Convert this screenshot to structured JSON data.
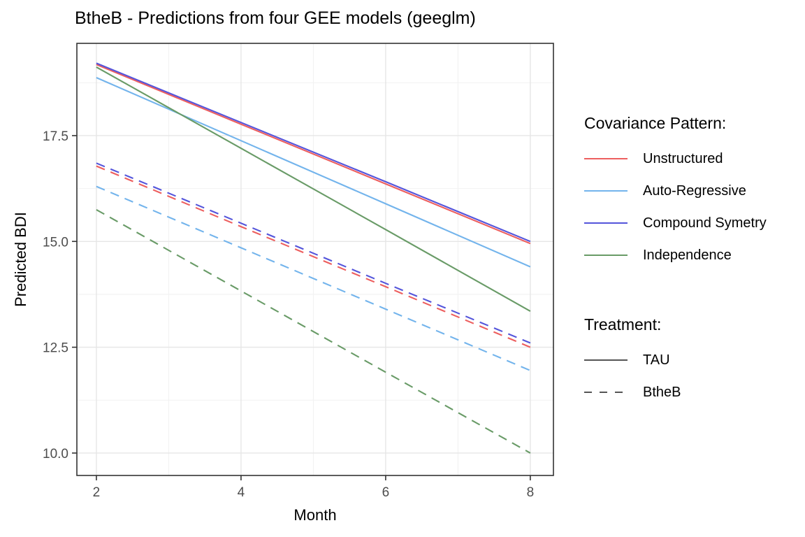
{
  "chart_data": {
    "type": "line",
    "title": "BtheB - Predictions from four GEE models (geeglm)",
    "xlabel": "Month",
    "ylabel": "Predicted BDI",
    "x": [
      2,
      4,
      6,
      8
    ],
    "xlim": [
      1.73,
      8.32
    ],
    "ylim": [
      9.47,
      19.68
    ],
    "x_ticks": {
      "values": [
        2,
        4,
        6,
        8
      ],
      "labels": [
        "2",
        "4",
        "6",
        "8"
      ]
    },
    "x_minor": [
      3,
      5,
      7
    ],
    "y_ticks": {
      "values": [
        10,
        12.5,
        15,
        17.5
      ],
      "labels": [
        "10.0",
        "12.5",
        "15.0",
        "17.5"
      ]
    },
    "y_minor": [
      11.25,
      13.75,
      16.25,
      18.75
    ],
    "grid": "major+minor",
    "legend_position": "right",
    "series": [
      {
        "treatment": "TAU",
        "covariance": "Unstructured",
        "color": "#ED5F5F",
        "linetype": "solid",
        "values": [
          19.18,
          17.77,
          16.36,
          14.95
        ]
      },
      {
        "treatment": "TAU",
        "covariance": "Auto-Regressive",
        "color": "#73B4EC",
        "linetype": "solid",
        "values": [
          18.87,
          17.38,
          15.89,
          14.4
        ]
      },
      {
        "treatment": "TAU",
        "covariance": "Compound Symetry",
        "color": "#5455DB",
        "linetype": "solid",
        "values": [
          19.21,
          17.81,
          16.41,
          15.0
        ]
      },
      {
        "treatment": "TAU",
        "covariance": "Independence",
        "color": "#699B67",
        "linetype": "solid",
        "values": [
          19.12,
          17.2,
          15.28,
          13.35
        ]
      },
      {
        "treatment": "BtheB",
        "covariance": "Unstructured",
        "color": "#ED5F5F",
        "linetype": "dashed",
        "values": [
          16.78,
          15.35,
          13.93,
          12.5
        ]
      },
      {
        "treatment": "BtheB",
        "covariance": "Auto-Regressive",
        "color": "#73B4EC",
        "linetype": "dashed",
        "values": [
          16.3,
          14.85,
          13.4,
          11.95
        ]
      },
      {
        "treatment": "BtheB",
        "covariance": "Compound Symetry",
        "color": "#5455DB",
        "linetype": "dashed",
        "values": [
          16.85,
          15.43,
          14.01,
          12.6
        ]
      },
      {
        "treatment": "BtheB",
        "covariance": "Independence",
        "color": "#699B67",
        "linetype": "dashed",
        "values": [
          15.75,
          13.83,
          11.91,
          10.0
        ]
      }
    ]
  },
  "legend": {
    "groups": [
      {
        "name": "covariance-pattern",
        "title": "Covariance Pattern:",
        "items": [
          {
            "label": "Unstructured",
            "color": "#ED5F5F",
            "dash": false
          },
          {
            "label": "Auto-Regressive",
            "color": "#73B4EC",
            "dash": false
          },
          {
            "label": "Compound Symetry",
            "color": "#5455DB",
            "dash": false
          },
          {
            "label": "Independence",
            "color": "#699B67",
            "dash": false
          }
        ]
      },
      {
        "name": "treatment",
        "title": "Treatment:",
        "items": [
          {
            "label": "TAU",
            "color": "#555555",
            "dash": false
          },
          {
            "label": "BtheB",
            "color": "#555555",
            "dash": true
          }
        ]
      }
    ]
  },
  "colors": {
    "panel_border": "#333333",
    "grid_major": "#E6E6E6",
    "grid_minor": "#F2F2F2",
    "tick_label": "#4D4D4D",
    "tick_mark": "#333333"
  }
}
